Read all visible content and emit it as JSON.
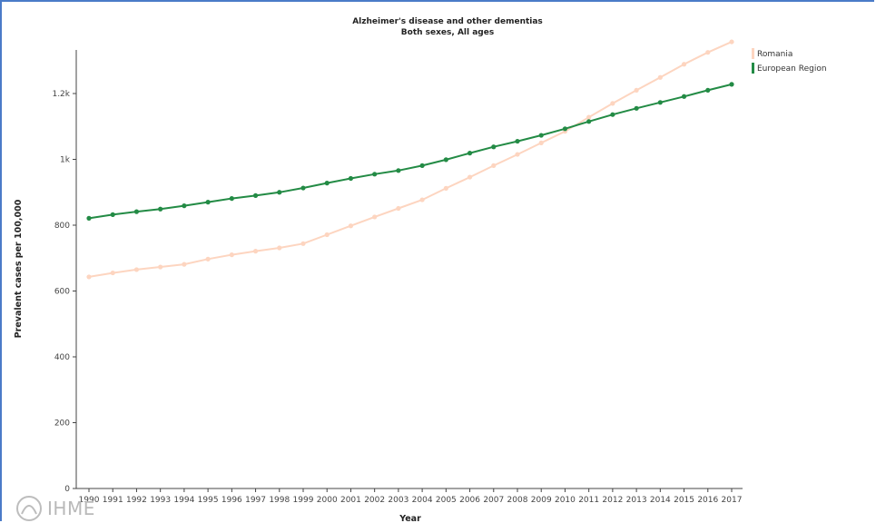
{
  "chart_data": {
    "type": "line",
    "title": "Alzheimer's disease and other dementias",
    "subtitle": "Both sexes, All ages",
    "xlabel": "Year",
    "ylabel": "Prevalent cases per 100,000",
    "x": [
      1990,
      1991,
      1992,
      1993,
      1994,
      1995,
      1996,
      1997,
      1998,
      1999,
      2000,
      2001,
      2002,
      2003,
      2004,
      2005,
      2006,
      2007,
      2008,
      2009,
      2010,
      2011,
      2012,
      2013,
      2014,
      2015,
      2016,
      2017
    ],
    "ylim": [
      0,
      1360
    ],
    "yticks": [
      {
        "value": 0,
        "label": "0"
      },
      {
        "value": 200,
        "label": "200"
      },
      {
        "value": 400,
        "label": "400"
      },
      {
        "value": 600,
        "label": "600"
      },
      {
        "value": 800,
        "label": "800"
      },
      {
        "value": 1000,
        "label": "1k"
      },
      {
        "value": 1200,
        "label": "1.2k"
      }
    ],
    "legend_position": "top-right",
    "grid": false,
    "series": [
      {
        "name": "Romania",
        "color": "#fdd5c0",
        "values": [
          643,
          655,
          665,
          673,
          681,
          697,
          710,
          721,
          731,
          744,
          771,
          798,
          825,
          851,
          877,
          912,
          946,
          981,
          1015,
          1050,
          1085,
          1128,
          1170,
          1210,
          1249,
          1289,
          1325,
          1357
        ]
      },
      {
        "name": "European Region",
        "color": "#238b45",
        "values": [
          821,
          832,
          841,
          849,
          859,
          870,
          881,
          890,
          900,
          913,
          928,
          942,
          955,
          966,
          981,
          999,
          1019,
          1038,
          1055,
          1073,
          1093,
          1115,
          1136,
          1155,
          1173,
          1191,
          1210,
          1228
        ]
      }
    ]
  },
  "logo": {
    "text": "IHME"
  }
}
